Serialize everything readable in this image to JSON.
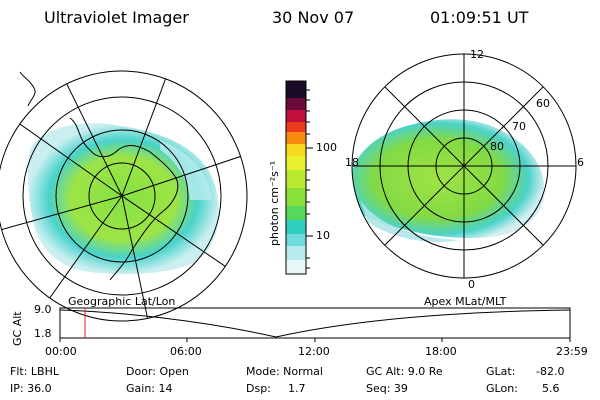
{
  "header": {
    "title": "Ultraviolet Imager",
    "date": "30 Nov 07",
    "time": "01:09:51 UT"
  },
  "left_panel": {
    "caption": "Geographic Lat/Lon"
  },
  "right_panel": {
    "caption": "Apex MLat/MLT",
    "lat_labels": [
      "60",
      "70",
      "80"
    ],
    "mlt_labels": [
      "12",
      "18",
      "6",
      "0"
    ]
  },
  "colorbar": {
    "label": "photon cm⁻²s⁻¹",
    "ticks": [
      "100",
      "10"
    ],
    "scale": "log"
  },
  "altitude_plot": {
    "ylabel": "GC Alt",
    "y_ticks": [
      "9.0",
      "1.8"
    ],
    "x_ticks": [
      "00:00",
      "06:00",
      "12:00",
      "18:00",
      "23:59"
    ],
    "marker_color": "#e02020"
  },
  "footer": {
    "row1": {
      "flt": "Flt: LBHL",
      "door": "Door: Open",
      "mode": "Mode: Normal",
      "gcalt": "GC Alt: 9.0 Re",
      "glat_label": "GLat:",
      "glat_value": "-82.0"
    },
    "row2": {
      "ip": "IP: 36.0",
      "gain": "Gain: 14",
      "dsp_label": "Dsp:",
      "dsp_value": "1.7",
      "seq": "Seq: 39",
      "glon_label": "GLon:",
      "glon_value": "5.6"
    }
  }
}
